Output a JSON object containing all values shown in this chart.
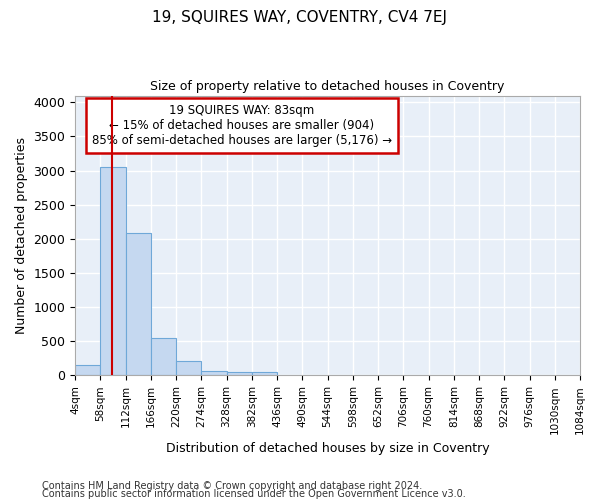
{
  "title": "19, SQUIRES WAY, COVENTRY, CV4 7EJ",
  "subtitle": "Size of property relative to detached houses in Coventry",
  "xlabel": "Distribution of detached houses by size in Coventry",
  "ylabel": "Number of detached properties",
  "annotation_line1": "19 SQUIRES WAY: 83sqm",
  "annotation_line2": "← 15% of detached houses are smaller (904)",
  "annotation_line3": "85% of semi-detached houses are larger (5,176) →",
  "footer_line1": "Contains HM Land Registry data © Crown copyright and database right 2024.",
  "footer_line2": "Contains public sector information licensed under the Open Government Licence v3.0.",
  "bin_edges": [
    4,
    58,
    112,
    166,
    220,
    274,
    328,
    382,
    436,
    490,
    544,
    598,
    652,
    706,
    760,
    814,
    868,
    922,
    976,
    1030,
    1084
  ],
  "bar_heights": [
    150,
    3050,
    2080,
    540,
    210,
    70,
    45,
    45,
    0,
    0,
    0,
    0,
    0,
    0,
    0,
    0,
    0,
    0,
    0,
    0
  ],
  "bar_color": "#c5d8f0",
  "bar_edge_color": "#6fa8d8",
  "vline_color": "#cc0000",
  "vline_x": 83,
  "annotation_box_color": "#cc0000",
  "background_color": "#e8eff8",
  "grid_color": "#ffffff",
  "fig_bg_color": "#ffffff",
  "ylim": [
    0,
    4100
  ],
  "yticks": [
    0,
    500,
    1000,
    1500,
    2000,
    2500,
    3000,
    3500,
    4000
  ]
}
